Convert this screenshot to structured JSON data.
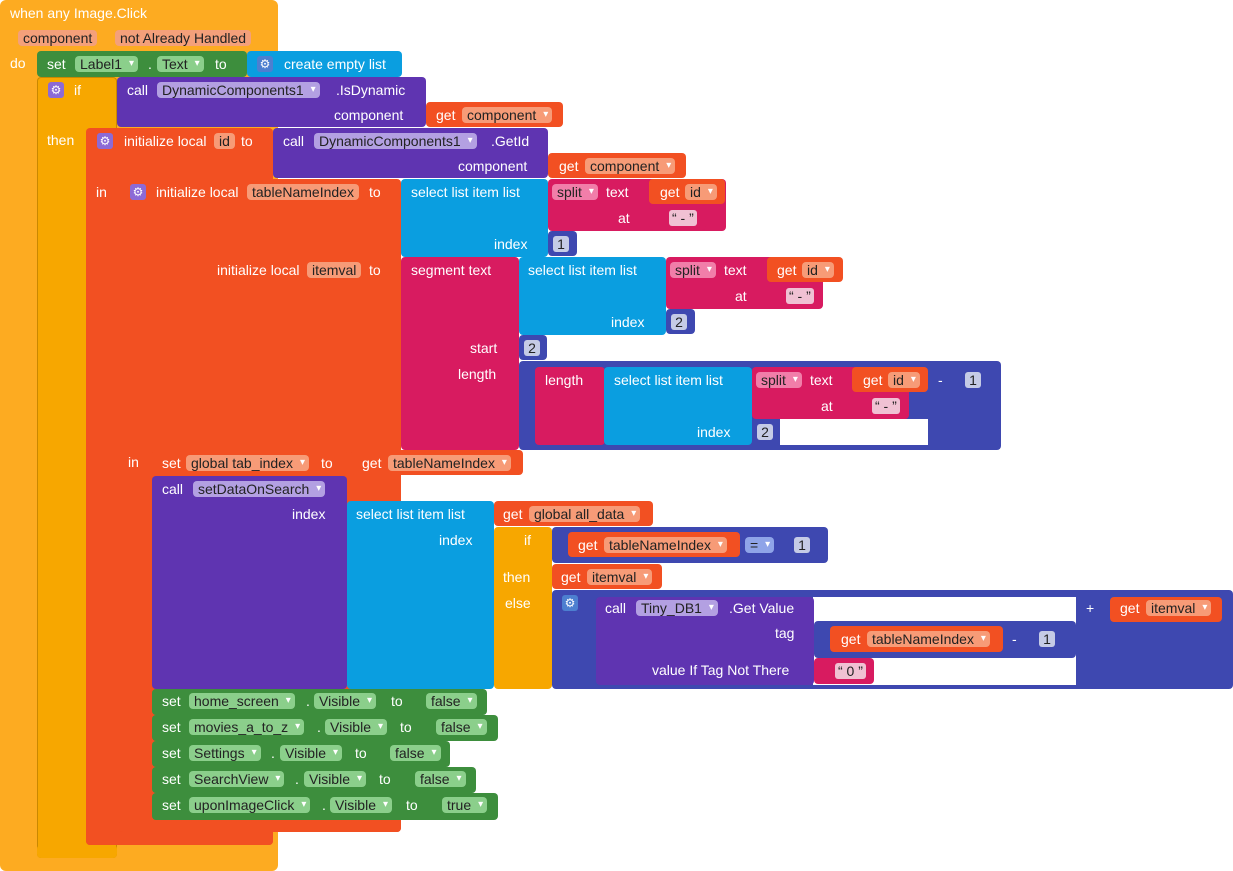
{
  "event": {
    "title": "when any Image.Click",
    "param1": "component",
    "param2": "not Already Handled",
    "do": "do"
  },
  "b1": {
    "set": "set",
    "comp": "Label1",
    "dot": ".",
    "prop": "Text",
    "to": "to",
    "create": "create empty list"
  },
  "if1": {
    "if": "if",
    "then": "then",
    "call": "call",
    "comp": "DynamicComponents1",
    "method": ".IsDynamic",
    "argLabel": "component",
    "get": "get",
    "var": "component"
  },
  "init1": {
    "label": "initialize local",
    "name": "id",
    "to": "to",
    "in": "in",
    "call": "call",
    "comp": "DynamicComponents1",
    "method": ".GetId",
    "argLabel": "component",
    "get": "get",
    "var": "component"
  },
  "init2": {
    "label": "initialize local",
    "name": "tableNameIndex",
    "to": "to",
    "in": "in"
  },
  "sel1": {
    "label": "select list item  list",
    "split": "split",
    "text": "text",
    "get": "get",
    "var": "id",
    "at": "at",
    "sep": "-",
    "index": "index",
    "indexVal": "1"
  },
  "init3": {
    "label": "initialize local",
    "name": "itemval",
    "to": "to"
  },
  "seg": {
    "label": "segment  text",
    "start": "start",
    "startVal": "2",
    "length": "length"
  },
  "sel2": {
    "label": "select list item  list",
    "split": "split",
    "text": "text",
    "get": "get",
    "var": "id",
    "at": "at",
    "sep": "-",
    "index": "index",
    "indexVal": "2"
  },
  "len": {
    "label": "length",
    "minus": "-",
    "minusVal": "1"
  },
  "sel3": {
    "label": "select list item  list",
    "split": "split",
    "text": "text",
    "get": "get",
    "var": "id",
    "at": "at",
    "sep": "-",
    "index": "index",
    "indexVal": "2"
  },
  "setGlobal": {
    "set": "set",
    "var": "global tab_index",
    "to": "to",
    "get": "get",
    "getVar": "tableNameIndex"
  },
  "callSearch": {
    "call": "call",
    "proc": "setDataOnSearch",
    "index": "index"
  },
  "sel4": {
    "label": "select list item  list",
    "get": "get",
    "var": "global all_data",
    "index": "index"
  },
  "ifExpr": {
    "if": "if",
    "then": "then",
    "else": "else",
    "get": "get",
    "var": "tableNameIndex",
    "op": "=",
    "num": "1",
    "thenGet": "get",
    "thenVar": "itemval"
  },
  "tiny": {
    "call": "call",
    "comp": "Tiny_DB1",
    "method": ".Get Value",
    "tag": "tag",
    "get": "get",
    "var": "tableNameIndex",
    "minus": "-",
    "num": "1",
    "vitnt": "value If Tag Not There",
    "default": "0",
    "plus": "+",
    "get2": "get",
    "var2": "itemval"
  },
  "visSets": [
    {
      "set": "set",
      "comp": "home_screen",
      "dot": ".",
      "prop": "Visible",
      "to": "to",
      "val": "false"
    },
    {
      "set": "set",
      "comp": "movies_a_to_z",
      "dot": ".",
      "prop": "Visible",
      "to": "to",
      "val": "false"
    },
    {
      "set": "set",
      "comp": "Settings",
      "dot": ".",
      "prop": "Visible",
      "to": "to",
      "val": "false"
    },
    {
      "set": "set",
      "comp": "SearchView",
      "dot": ".",
      "prop": "Visible",
      "to": "to",
      "val": "false"
    },
    {
      "set": "set",
      "comp": "uponImageClick",
      "dot": ".",
      "prop": "Visible",
      "to": "to",
      "val": "true"
    }
  ],
  "colors": {
    "event": "#fdab21",
    "control": "#f7a700",
    "variables": "#f25022",
    "procedures": "#5f34b1",
    "lists": "#0a9ee0",
    "text": "#d81b60",
    "math": "#3e48b0",
    "logic": "#3d8e3d",
    "component": "#ea6a3c"
  }
}
